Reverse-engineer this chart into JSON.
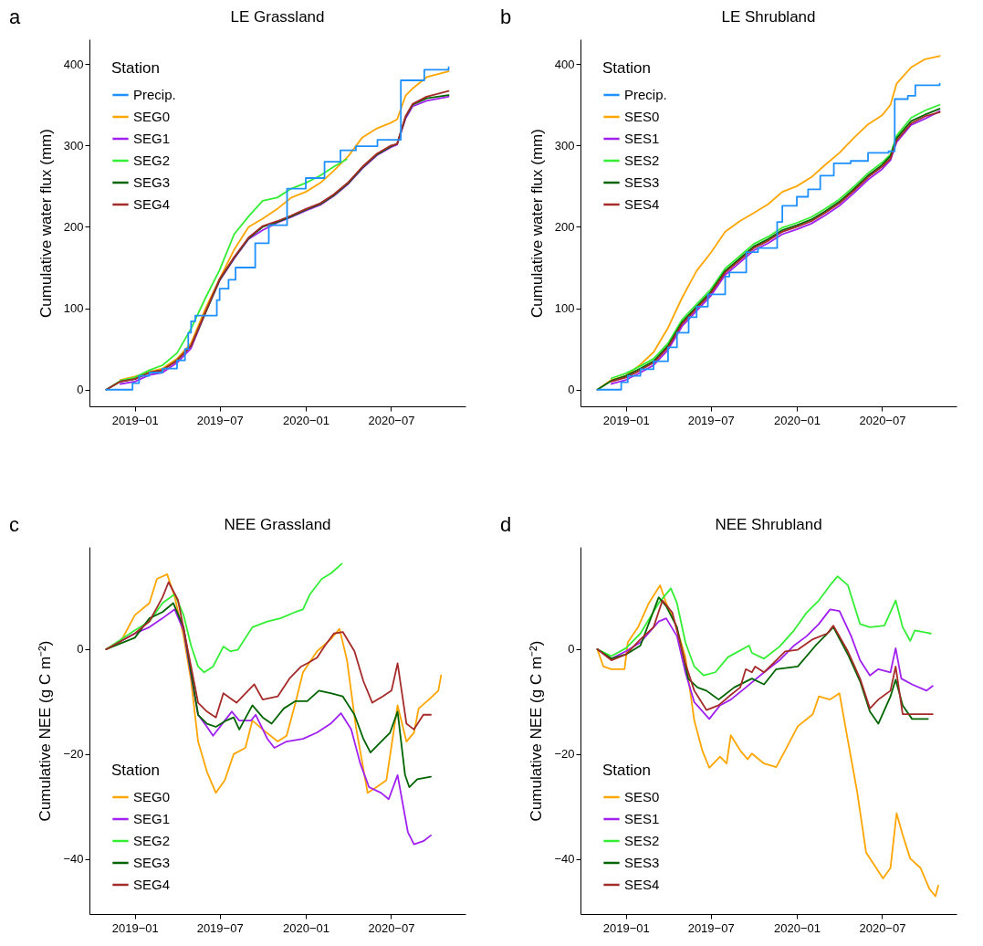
{
  "chart_data": [
    {
      "type": "line",
      "title": "LE Grassland",
      "ylabel": "Cumulative water flux (mm)",
      "legend_title": "Station",
      "legend": "top left",
      "annotations": [
        "a"
      ],
      "xlim": [
        "2018-09-26",
        "2020-12-07"
      ],
      "xticks": [
        {
          "value": "2019-01-01",
          "label": "2019−01"
        },
        {
          "value": "2019-07-01",
          "label": "2019−07"
        },
        {
          "value": "2020-01-01",
          "label": "2020−01"
        },
        {
          "value": "2020-07-01",
          "label": "2020−07"
        }
      ],
      "ylim": [
        -20.5,
        430.5
      ],
      "yticks": [
        0,
        100,
        200,
        300,
        400
      ],
      "x": [
        "2018-11-01",
        "2018-12-01",
        "2019-01-01",
        "2019-02-01",
        "2019-03-01",
        "2019-04-01",
        "2019-05-01",
        "2019-06-01",
        "2019-07-01",
        "2019-08-01",
        "2019-09-01",
        "2019-10-01",
        "2019-11-01",
        "2019-12-01",
        "2020-01-01",
        "2020-02-01",
        "2020-03-01",
        "2020-04-01",
        "2020-05-01",
        "2020-06-01",
        "2020-07-01",
        "2020-07-14",
        "2020-08-01",
        "2020-08-16",
        "2020-09-15",
        "2020-11-01"
      ],
      "series": [
        {
          "name": "Precip.",
          "type": "step",
          "color": "#1e90ff",
          "x": [
            "2018-11-01",
            "2018-12-27",
            "2019-01-10",
            "2019-02-01",
            "2019-03-01",
            "2019-04-01",
            "2019-04-18",
            "2019-04-25",
            "2019-05-01",
            "2019-05-10",
            "2019-06-25",
            "2019-07-01",
            "2019-07-20",
            "2019-08-04",
            "2019-09-15",
            "2019-10-14",
            "2019-11-22",
            "2020-01-01",
            "2020-02-10",
            "2020-03-15",
            "2020-04-17",
            "2020-06-02",
            "2020-07-22",
            "2020-09-10",
            "2020-11-01"
          ],
          "values": [
            0,
            8,
            17,
            21,
            26,
            36,
            50,
            70,
            84,
            91,
            110,
            124,
            135,
            150,
            180,
            202,
            247,
            260,
            280,
            294,
            299,
            307,
            380,
            393,
            396
          ]
        },
        {
          "name": "SEG0",
          "color": "#ffa500",
          "values": [
            null,
            12,
            16,
            22,
            26,
            38,
            57,
            100,
            136,
            172,
            200,
            210,
            222,
            236,
            243,
            254,
            269,
            287,
            310,
            321,
            328,
            332,
            361,
            370,
            384,
            391
          ]
        },
        {
          "name": "SEG1",
          "color": "#a020f0",
          "values": [
            null,
            7,
            10,
            18,
            21,
            33,
            51,
            95,
            134,
            161,
            185,
            196,
            205,
            212,
            220,
            227,
            238,
            253,
            272,
            288,
            298,
            301,
            333,
            348,
            355,
            360
          ]
        },
        {
          "name": "SEG2",
          "color": "#33ee33",
          "x": [
            "2018-11-01",
            "2018-12-01",
            "2019-01-01",
            "2019-02-01",
            "2019-03-01",
            "2019-04-01",
            "2019-05-01",
            "2019-06-01",
            "2019-07-01",
            "2019-08-01",
            "2019-09-01",
            "2019-10-01",
            "2019-11-01",
            "2019-12-01",
            "2020-01-01",
            "2020-02-01",
            "2020-03-01",
            "2020-03-28"
          ],
          "values": [
            0,
            11,
            15,
            24,
            30,
            45,
            75,
            113,
            147,
            191,
            213,
            232,
            236,
            247,
            254,
            263,
            274,
            283
          ]
        },
        {
          "name": "SEG3",
          "color": "#006400",
          "values": [
            0,
            10,
            13,
            21,
            24,
            36,
            54,
            95,
            135,
            162,
            186,
            200,
            206,
            213,
            221,
            228,
            239,
            254,
            273,
            289,
            299,
            302,
            335,
            350,
            358,
            362
          ]
        },
        {
          "name": "SEG4",
          "color": "#a52a2a",
          "values": [
            0,
            10,
            13,
            21,
            24,
            36,
            54,
            96,
            136,
            163,
            187,
            201,
            207,
            214,
            222,
            229,
            240,
            255,
            274,
            290,
            300,
            302,
            336,
            351,
            360,
            367
          ]
        }
      ]
    },
    {
      "type": "line",
      "title": "LE Shrubland",
      "ylabel": "Cumulative water flux (mm)",
      "legend_title": "Station",
      "legend": "top left",
      "annotations": [
        "b"
      ],
      "xlim": [
        "2018-09-26",
        "2020-12-07"
      ],
      "xticks": [
        {
          "value": "2019-01-01",
          "label": "2019−01"
        },
        {
          "value": "2019-07-01",
          "label": "2019−07"
        },
        {
          "value": "2020-01-01",
          "label": "2020−01"
        },
        {
          "value": "2020-07-01",
          "label": "2020−07"
        }
      ],
      "ylim": [
        -20.5,
        430.5
      ],
      "yticks": [
        0,
        100,
        200,
        300,
        400
      ],
      "x": [
        "2018-11-01",
        "2018-12-01",
        "2019-01-01",
        "2019-02-01",
        "2019-03-01",
        "2019-04-01",
        "2019-05-01",
        "2019-06-01",
        "2019-07-01",
        "2019-08-01",
        "2019-09-01",
        "2019-10-01",
        "2019-11-01",
        "2019-12-01",
        "2020-01-01",
        "2020-02-01",
        "2020-03-01",
        "2020-04-01",
        "2020-05-01",
        "2020-06-01",
        "2020-07-01",
        "2020-07-19",
        "2020-08-01",
        "2020-09-01",
        "2020-10-01",
        "2020-11-01"
      ],
      "series": [
        {
          "name": "Precip.",
          "type": "step",
          "color": "#1e90ff",
          "x": [
            "2018-11-01",
            "2018-12-22",
            "2019-01-05",
            "2019-02-01",
            "2019-03-01",
            "2019-04-01",
            "2019-04-20",
            "2019-05-15",
            "2019-06-01",
            "2019-06-25",
            "2019-08-01",
            "2019-08-10",
            "2019-09-15",
            "2019-10-10",
            "2019-11-20",
            "2019-12-01",
            "2020-01-01",
            "2020-01-25",
            "2020-02-20",
            "2020-03-20",
            "2020-04-25",
            "2020-06-01",
            "2020-07-15",
            "2020-07-28",
            "2020-08-25",
            "2020-09-10",
            "2020-11-01"
          ],
          "values": [
            0,
            9,
            17,
            25,
            35,
            52,
            70,
            89,
            102,
            117,
            139,
            144,
            169,
            174,
            206,
            226,
            237,
            246,
            263,
            278,
            281,
            291,
            293,
            357,
            361,
            374,
            376
          ]
        },
        {
          "name": "SES0",
          "color": "#ffa500",
          "values": [
            0,
            12,
            17,
            31,
            46,
            76,
            113,
            146,
            168,
            194,
            207,
            217,
            228,
            243,
            250,
            261,
            276,
            291,
            309,
            326,
            337,
            350,
            376,
            396,
            406,
            410
          ]
        },
        {
          "name": "SES1",
          "color": "#a020f0",
          "values": [
            null,
            7,
            12,
            21,
            30,
            49,
            78,
            97,
            115,
            141,
            156,
            171,
            180,
            191,
            197,
            204,
            214,
            226,
            241,
            258,
            271,
            282,
            304,
            325,
            333,
            342
          ]
        },
        {
          "name": "SES2",
          "color": "#33ee33",
          "values": [
            null,
            14,
            20,
            29,
            38,
            57,
            86,
            105,
            123,
            149,
            164,
            179,
            188,
            199,
            205,
            212,
            222,
            234,
            249,
            266,
            279,
            289,
            312,
            334,
            343,
            350
          ]
        },
        {
          "name": "SES3",
          "color": "#006400",
          "values": [
            0,
            11,
            17,
            26,
            35,
            54,
            83,
            102,
            120,
            146,
            161,
            176,
            185,
            196,
            202,
            209,
            219,
            231,
            246,
            263,
            276,
            287,
            309,
            330,
            338,
            345
          ]
        },
        {
          "name": "SES4",
          "color": "#a52a2a",
          "values": [
            null,
            10,
            15,
            24,
            33,
            52,
            81,
            100,
            118,
            144,
            159,
            174,
            183,
            194,
            200,
            207,
            217,
            229,
            244,
            261,
            274,
            284,
            306,
            327,
            336,
            341
          ]
        }
      ]
    },
    {
      "type": "line",
      "title": "NEE Grassland",
      "ylabel": "Cumulative NEE (g C m⁻²)",
      "legend_title": "Station",
      "legend": "bottom left",
      "annotations": [
        "c"
      ],
      "xlim": [
        "2018-09-26",
        "2020-12-07"
      ],
      "xticks": [
        {
          "value": "2019-01-01",
          "label": "2019−01"
        },
        {
          "value": "2019-07-01",
          "label": "2019−07"
        },
        {
          "value": "2020-01-01",
          "label": "2020−01"
        },
        {
          "value": "2020-07-01",
          "label": "2020−07"
        }
      ],
      "ylim": [
        -50.5,
        19.5
      ],
      "yticks": [
        -40,
        -20,
        0
      ],
      "series": [
        {
          "name": "SEG0",
          "color": "#ffa500",
          "x": [
            "2018-11-01",
            "2018-12-01",
            "2019-01-01",
            "2019-02-01",
            "2019-02-17",
            "2019-03-11",
            "2019-03-27",
            "2019-04-15",
            "2019-05-01",
            "2019-05-16",
            "2019-06-04",
            "2019-06-23",
            "2019-07-12",
            "2019-07-31",
            "2019-08-25",
            "2019-09-09",
            "2019-10-01",
            "2019-11-02",
            "2019-11-21",
            "2019-12-10",
            "2019-12-26",
            "2020-01-25",
            "2020-02-23",
            "2020-03-13",
            "2020-03-29",
            "2020-04-17",
            "2020-05-12",
            "2020-05-31",
            "2020-06-21",
            "2020-07-15",
            "2020-08-03",
            "2020-08-19",
            "2020-08-29",
            "2020-09-20",
            "2020-10-10",
            "2020-10-16"
          ],
          "values": [
            0,
            1.3,
            6.5,
            8.8,
            13.4,
            14.3,
            10,
            2.5,
            -6,
            -17.6,
            -23.4,
            -27.4,
            -25,
            -20,
            -18.8,
            -13.6,
            -15.3,
            -17.6,
            -16.5,
            -10.2,
            -4.4,
            -0.4,
            1.9,
            3.9,
            -2.1,
            -14.8,
            -27.4,
            -26.3,
            -25,
            -10.7,
            -17.6,
            -15.9,
            -11.3,
            -9.6,
            -7.9,
            -5
          ]
        },
        {
          "name": "SEG1",
          "color": "#a020f0",
          "x": [
            "2018-11-01",
            "2019-01-01",
            "2019-02-01",
            "2019-03-01",
            "2019-03-27",
            "2019-04-15",
            "2019-05-01",
            "2019-05-16",
            "2019-06-04",
            "2019-06-17",
            "2019-07-12",
            "2019-07-27",
            "2019-08-12",
            "2019-09-06",
            "2019-09-16",
            "2019-10-11",
            "2019-10-26",
            "2019-11-21",
            "2019-12-26",
            "2020-01-25",
            "2020-02-23",
            "2020-03-16",
            "2020-04-07",
            "2020-04-26",
            "2020-05-15",
            "2020-06-10",
            "2020-06-26",
            "2020-07-15",
            "2020-08-06",
            "2020-08-19",
            "2020-09-08",
            "2020-09-24"
          ],
          "values": [
            0,
            3,
            4.2,
            5.9,
            7.6,
            3.6,
            -5,
            -12.5,
            -14.8,
            -16.5,
            -13.6,
            -11.9,
            -13.6,
            -13.6,
            -12.5,
            -17.1,
            -18.8,
            -17.6,
            -17.1,
            -15.9,
            -14.2,
            -12.2,
            -15.3,
            -21.7,
            -26.3,
            -27.4,
            -28.6,
            -24,
            -34.9,
            -37.2,
            -36.6,
            -35.5
          ]
        },
        {
          "name": "SEG2",
          "color": "#33ee33",
          "x": [
            "2018-11-01",
            "2019-01-01",
            "2019-02-01",
            "2019-03-01",
            "2019-03-27",
            "2019-04-15",
            "2019-05-01",
            "2019-05-16",
            "2019-05-29",
            "2019-06-17",
            "2019-07-09",
            "2019-07-24",
            "2019-08-09",
            "2019-09-09",
            "2019-10-11",
            "2019-11-08",
            "2019-12-10",
            "2019-12-26",
            "2020-01-10",
            "2020-02-04",
            "2020-02-24",
            "2020-03-18"
          ],
          "values": [
            0,
            3.6,
            5.3,
            8.8,
            10.5,
            6.5,
            0.7,
            -3.3,
            -4.4,
            -3.3,
            0.5,
            -0.4,
            -0.1,
            4.2,
            5.3,
            5.9,
            7.1,
            7.6,
            10.5,
            13.4,
            14.5,
            16.3
          ]
        },
        {
          "name": "SEG3",
          "color": "#006400",
          "x": [
            "2018-11-01",
            "2019-01-01",
            "2019-02-01",
            "2019-03-01",
            "2019-03-24",
            "2019-04-15",
            "2019-05-01",
            "2019-05-16",
            "2019-06-04",
            "2019-06-23",
            "2019-07-15",
            "2019-07-31",
            "2019-08-12",
            "2019-09-09",
            "2019-10-01",
            "2019-10-20",
            "2019-11-15",
            "2019-12-10",
            "2020-01-04",
            "2020-01-29",
            "2020-02-23",
            "2020-03-20",
            "2020-04-14",
            "2020-05-03",
            "2020-05-18",
            "2020-06-10",
            "2020-06-29",
            "2020-07-15",
            "2020-07-31",
            "2020-08-09",
            "2020-08-26",
            "2020-09-24"
          ],
          "values": [
            0,
            2.2,
            5.9,
            7.1,
            8.8,
            4.2,
            -4.4,
            -12.5,
            -14.2,
            -14.8,
            -13.6,
            -13,
            -15.3,
            -10.7,
            -13,
            -14.2,
            -11.3,
            -9.9,
            -9.9,
            -7.9,
            -8.4,
            -9,
            -12.5,
            -17.1,
            -19.7,
            -17.6,
            -15.9,
            -11.9,
            -24,
            -26.3,
            -24.8,
            -24.3
          ]
        },
        {
          "name": "SEG4",
          "color": "#a52a2a",
          "x": [
            "2018-11-01",
            "2019-01-01",
            "2019-02-01",
            "2019-03-01",
            "2019-03-14",
            "2019-04-03",
            "2019-05-01",
            "2019-05-16",
            "2019-06-04",
            "2019-06-23",
            "2019-07-09",
            "2019-08-06",
            "2019-09-13",
            "2019-10-01",
            "2019-11-02",
            "2019-11-27",
            "2019-12-22",
            "2020-01-04",
            "2020-01-25",
            "2020-02-11",
            "2020-03-01",
            "2020-03-20",
            "2020-04-14",
            "2020-05-03",
            "2020-05-22",
            "2020-06-13",
            "2020-07-02",
            "2020-07-15",
            "2020-08-03",
            "2020-08-19",
            "2020-09-08",
            "2020-09-24"
          ],
          "values": [
            0,
            3,
            5.3,
            9.9,
            12.8,
            9.4,
            -3.3,
            -10.2,
            -11.9,
            -13,
            -8.4,
            -10.2,
            -6.7,
            -9.6,
            -9,
            -5.6,
            -3.3,
            -2.7,
            -1.6,
            0.7,
            3,
            3.3,
            -0.4,
            -6.1,
            -10.2,
            -9,
            -7.9,
            -2.7,
            -14.2,
            -15.3,
            -12.5,
            -12.5
          ]
        }
      ]
    },
    {
      "type": "line",
      "title": "NEE Shrubland",
      "ylabel": "Cumulative NEE (g C m⁻²)",
      "legend_title": "Station",
      "legend": "bottom left",
      "annotations": [
        "d"
      ],
      "xlim": [
        "2018-09-26",
        "2020-12-07"
      ],
      "xticks": [
        {
          "value": "2019-01-01",
          "label": "2019−01"
        },
        {
          "value": "2019-07-01",
          "label": "2019−07"
        },
        {
          "value": "2020-01-01",
          "label": "2020−01"
        },
        {
          "value": "2020-07-01",
          "label": "2020−07"
        }
      ],
      "ylim": [
        -50.5,
        19.5
      ],
      "yticks": [
        -40,
        -20,
        0
      ],
      "series": [
        {
          "name": "SES0",
          "color": "#ffa500",
          "x": [
            "2018-11-01",
            "2018-11-14",
            "2018-12-01",
            "2018-12-29",
            "2019-01-05",
            "2019-01-27",
            "2019-02-19",
            "2019-03-15",
            "2019-03-28",
            "2019-04-17",
            "2019-05-08",
            "2019-05-27",
            "2019-06-13",
            "2019-06-28",
            "2019-07-21",
            "2019-08-04",
            "2019-08-13",
            "2019-09-02",
            "2019-09-18",
            "2019-09-27",
            "2019-10-23",
            "2019-11-18",
            "2019-12-07",
            "2020-01-03",
            "2020-02-04",
            "2020-02-17",
            "2020-03-12",
            "2020-04-01",
            "2020-04-16",
            "2020-05-09",
            "2020-05-28",
            "2020-06-14",
            "2020-07-03",
            "2020-07-19",
            "2020-08-01",
            "2020-08-14",
            "2020-08-30",
            "2020-09-21",
            "2020-10-10",
            "2020-10-23",
            "2020-10-29"
          ],
          "values": [
            0,
            -3.3,
            -3.8,
            -3.8,
            1.3,
            4.2,
            8.8,
            12.2,
            8.8,
            4.8,
            -1.5,
            -13.6,
            -19.3,
            -22.6,
            -20.5,
            -21.8,
            -16.4,
            -19.3,
            -21,
            -19.9,
            -21.8,
            -22.5,
            -19.3,
            -14.7,
            -12.4,
            -9,
            -9.6,
            -8.4,
            -15.9,
            -27.3,
            -38.8,
            -41.1,
            -43.7,
            -41.7,
            -31.3,
            -35.4,
            -39.9,
            -41.7,
            -45.7,
            -47.1,
            -45.1
          ]
        },
        {
          "name": "SES1",
          "color": "#a020f0",
          "x": [
            "2018-11-01",
            "2018-12-01",
            "2019-01-01",
            "2019-02-01",
            "2019-03-12",
            "2019-03-28",
            "2019-04-20",
            "2019-05-08",
            "2019-05-27",
            "2019-06-28",
            "2019-07-21",
            "2019-08-13",
            "2019-09-14",
            "2019-10-23",
            "2019-11-25",
            "2019-12-26",
            "2020-01-22",
            "2020-02-17",
            "2020-03-12",
            "2020-04-01",
            "2020-04-26",
            "2020-05-15",
            "2020-06-05",
            "2020-06-23",
            "2020-07-19",
            "2020-07-30",
            "2020-08-11",
            "2020-09-03",
            "2020-10-04",
            "2020-10-17"
          ],
          "values": [
            0,
            -1.8,
            -0.4,
            1.3,
            5.3,
            5.9,
            2.5,
            -4.4,
            -10.1,
            -13.3,
            -10.7,
            -9.6,
            -7.3,
            -4.4,
            -2.1,
            0.7,
            2.5,
            4.8,
            7.6,
            7.3,
            2.5,
            -2.1,
            -5,
            -3.8,
            -4.4,
            0.2,
            -5.6,
            -6.7,
            -7.9,
            -7
          ]
        },
        {
          "name": "SES2",
          "color": "#33ee33",
          "x": [
            "2018-11-01",
            "2018-12-01",
            "2019-01-01",
            "2019-02-01",
            "2019-03-12",
            "2019-04-07",
            "2019-04-20",
            "2019-05-08",
            "2019-05-27",
            "2019-06-16",
            "2019-07-11",
            "2019-08-07",
            "2019-09-21",
            "2019-09-27",
            "2019-10-23",
            "2019-11-25",
            "2019-12-26",
            "2020-01-22",
            "2020-02-17",
            "2020-03-12",
            "2020-03-28",
            "2020-04-19",
            "2020-05-15",
            "2020-06-05",
            "2020-07-06",
            "2020-07-30",
            "2020-08-14",
            "2020-08-30",
            "2020-09-09",
            "2020-10-13"
          ],
          "values": [
            0,
            -1.3,
            0.2,
            3,
            8.8,
            11.6,
            8.8,
            1.3,
            -3.3,
            -5,
            -4.4,
            -1.5,
            0.7,
            -0.7,
            -1.8,
            0.5,
            3.6,
            7,
            9.3,
            12.2,
            13.9,
            12.2,
            4.8,
            4.2,
            4.5,
            9.3,
            4.2,
            1.6,
            3.6,
            3
          ]
        },
        {
          "name": "SES3",
          "color": "#006400",
          "x": [
            "2018-11-01",
            "2018-12-01",
            "2019-01-01",
            "2019-02-01",
            "2019-03-12",
            "2019-03-28",
            "2019-04-20",
            "2019-05-14",
            "2019-06-03",
            "2019-06-22",
            "2019-07-18",
            "2019-08-20",
            "2019-09-27",
            "2019-10-23",
            "2019-11-18",
            "2020-01-03",
            "2020-02-10",
            "2020-03-06",
            "2020-03-19",
            "2020-04-19",
            "2020-05-15",
            "2020-06-05",
            "2020-06-23",
            "2020-07-19",
            "2020-07-30",
            "2020-08-14",
            "2020-09-03",
            "2020-10-07"
          ],
          "values": [
            0,
            -1.8,
            -1,
            0.7,
            9.9,
            8.2,
            4.2,
            -5.6,
            -7.3,
            -7.9,
            -9.6,
            -7.3,
            -5.6,
            -6.7,
            -3.8,
            -3.3,
            0.7,
            3,
            4.2,
            -1,
            -6.1,
            -11.9,
            -14.2,
            -9,
            -5.8,
            -10.7,
            -13.3,
            -13.3
          ]
        },
        {
          "name": "SES4",
          "color": "#a52a2a",
          "x": [
            "2018-11-01",
            "2018-12-01",
            "2019-01-01",
            "2019-02-01",
            "2019-03-01",
            "2019-03-20",
            "2019-04-10",
            "2019-05-08",
            "2019-05-27",
            "2019-06-22",
            "2019-07-18",
            "2019-08-13",
            "2019-09-02",
            "2019-09-14",
            "2019-09-27",
            "2019-10-04",
            "2019-10-23",
            "2019-11-18",
            "2019-12-07",
            "2020-01-03",
            "2020-02-04",
            "2020-03-06",
            "2020-03-19",
            "2020-04-19",
            "2020-05-15",
            "2020-06-05",
            "2020-06-23",
            "2020-07-19",
            "2020-07-30",
            "2020-08-14",
            "2020-09-03",
            "2020-10-17"
          ],
          "values": [
            0,
            -2.1,
            -1,
            1.9,
            4.2,
            9.3,
            7,
            -2.7,
            -7.9,
            -11.6,
            -10.7,
            -8.7,
            -7.3,
            -3.8,
            -4.4,
            -3.3,
            -4.4,
            -2.1,
            -0.4,
            -0.1,
            1.9,
            3,
            4.5,
            -0.4,
            -5.6,
            -11.3,
            -9.6,
            -7.9,
            -3.3,
            -12.4,
            -12.4,
            -12.4
          ]
        }
      ]
    }
  ]
}
